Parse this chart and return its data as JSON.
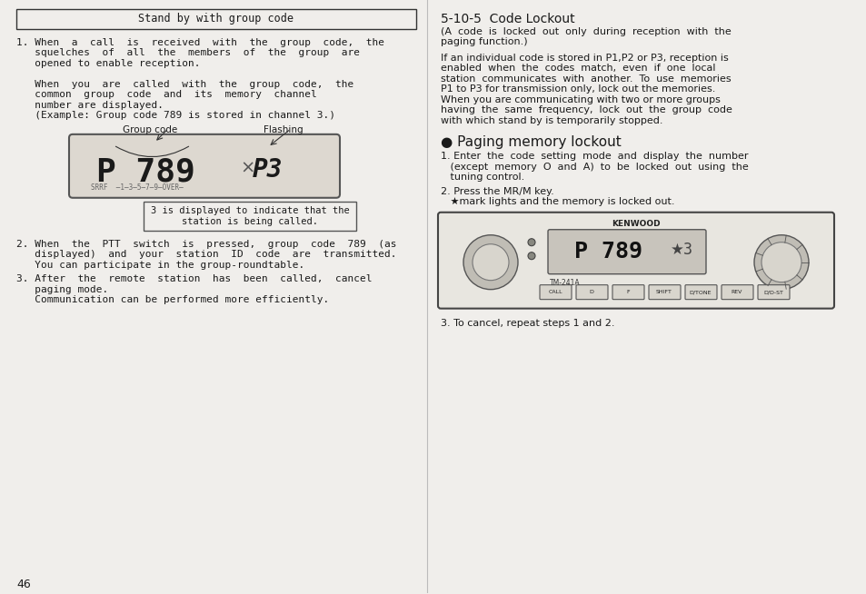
{
  "bg_color": "#e8e8e8",
  "page_bg": "#f0eeeb",
  "left_column": {
    "box_title": "Stand by with group code",
    "item1_lines": [
      "1.  When  a  call  is  received  with  the  group  code,  the",
      "    squelches  of  all  the  members  of  the  group  are",
      "    opened to enable reception.",
      "",
      "    When  you  are  called  with  the  group  code,  the",
      "    common   group   code   and   its   memory   channel",
      "    number are displayed.",
      "    (Example: Group code 789 is stored in channel 3.)"
    ],
    "display_labels": [
      "Group code",
      "Flashing"
    ],
    "display_text": "P 789",
    "display_text2": "P3",
    "callout_box": "3 is displayed to indicate that the\nstation is being called.",
    "item2_lines": [
      "2.  When  the  PTT  switch  is  pressed,  group  code  789  (as",
      "    displayed)  and  your  station  ID  code  are  transmitted.",
      "    You can participate in the group-roundtable."
    ],
    "item3_lines": [
      "3.  After  the  remote  station  has  been  called,  cancel",
      "    paging mode.",
      "    Communication can be performed more efficiently."
    ],
    "page_number": "46"
  },
  "right_column": {
    "heading": "5-10-5  Code Lockout",
    "para1_lines": [
      "(A  code  is  locked  out  only  during  reception  with  the",
      "paging function.)"
    ],
    "para2_lines": [
      "If an individual code is stored in P1,P2 or P3, reception is",
      "enabled  when  the  codes  match,  even  if  one  local",
      "station  communicates  with  another.  To  use  memories",
      "P1 to P3 for transmission only, lock out the memories.",
      "When you are communicating with two or more groups",
      "having  the  same  frequency,  lock  out  the  group  code",
      "with which stand by is temporarily stopped."
    ],
    "bullet_heading": "● Paging memory lockout",
    "step1_lines": [
      "1.  Enter  the  code  setting  mode  and  display  the  number",
      "    (except  memory  O  and  A)  to  be  locked  out  using  the",
      "    tuning control."
    ],
    "step2_lines": [
      "2.  Press the MR/M key.",
      "    ★mark lights and the memory is locked out."
    ],
    "step3_lines": [
      "3.  To cancel, repeat steps 1 and 2."
    ]
  }
}
